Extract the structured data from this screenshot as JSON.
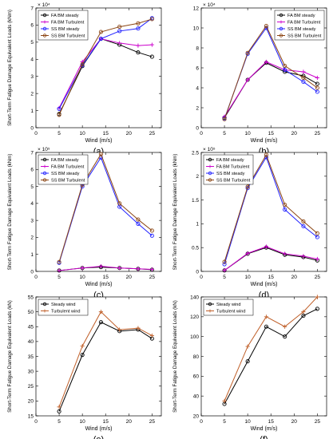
{
  "figure": {
    "title": ""
  },
  "chart_data": [
    {
      "type": "line",
      "panel_label": "(a)",
      "xlabel": "Wind (m/s)",
      "ylabel": "Short-Term Fatigue Damage Equivalent Loads (kNm)",
      "exponent": "× 10⁴",
      "xlim": [
        0,
        27
      ],
      "ylim": [
        0,
        7
      ],
      "xticks": [
        0,
        5,
        10,
        15,
        20,
        25
      ],
      "yticks": [
        0,
        1,
        2,
        3,
        4,
        5,
        6,
        7
      ],
      "x": [
        5,
        10,
        14,
        18,
        22,
        25
      ],
      "legend_position": "top-left",
      "series": [
        {
          "name": "FA BM steady",
          "values": [
            0.8,
            3.6,
            5.2,
            4.85,
            4.4,
            4.15
          ],
          "color": "#000000",
          "marker": "circle"
        },
        {
          "name": "FA BM Turbulent",
          "values": [
            1.15,
            3.85,
            5.2,
            4.95,
            4.8,
            4.85
          ],
          "color": "#cc00cc",
          "marker": "plus"
        },
        {
          "name": "SS BM steady",
          "values": [
            1.1,
            3.65,
            5.2,
            5.65,
            5.8,
            6.4
          ],
          "color": "#2020ff",
          "marker": "circle"
        },
        {
          "name": "SS BM Turbulent",
          "values": [
            0.75,
            3.7,
            5.6,
            5.9,
            6.1,
            6.35
          ],
          "color": "#8b4513",
          "marker": "circle"
        }
      ]
    },
    {
      "type": "line",
      "panel_label": "(b)",
      "xlabel": "Wind (m/s)",
      "ylabel": "",
      "exponent": "× 10⁴",
      "xlim": [
        0,
        27
      ],
      "ylim": [
        0,
        12
      ],
      "xticks": [
        0,
        5,
        10,
        15,
        20,
        25
      ],
      "yticks": [
        0,
        2,
        4,
        6,
        8,
        10,
        12
      ],
      "x": [
        5,
        10,
        14,
        18,
        22,
        25
      ],
      "legend_position": "top-right",
      "series": [
        {
          "name": "FA BM steady",
          "values": [
            1.0,
            4.8,
            6.5,
            5.6,
            5.2,
            4.4
          ],
          "color": "#000000",
          "marker": "circle"
        },
        {
          "name": "FA BM Turbulent",
          "values": [
            1.1,
            4.8,
            6.6,
            5.8,
            5.6,
            5.0
          ],
          "color": "#cc00cc",
          "marker": "plus"
        },
        {
          "name": "SS BM steady",
          "values": [
            0.9,
            7.4,
            10.0,
            5.8,
            4.6,
            3.6
          ],
          "color": "#2020ff",
          "marker": "circle"
        },
        {
          "name": "SS BM Turbulent",
          "values": [
            0.85,
            7.5,
            10.2,
            6.2,
            5.0,
            4.0
          ],
          "color": "#8b4513",
          "marker": "circle"
        }
      ]
    },
    {
      "type": "line",
      "panel_label": "(c)",
      "xlabel": "Wind (m/s)",
      "ylabel": "Short-Term Fatigue Damage Equivalent Loads (kNm)",
      "exponent": "× 10⁵",
      "xlim": [
        0,
        27
      ],
      "ylim": [
        0,
        7
      ],
      "xticks": [
        0,
        5,
        10,
        15,
        20,
        25
      ],
      "yticks": [
        0,
        1,
        2,
        3,
        4,
        5,
        6,
        7
      ],
      "x": [
        5,
        10,
        14,
        18,
        22,
        25
      ],
      "legend_position": "top-left",
      "series": [
        {
          "name": "FA BM steady",
          "values": [
            0.05,
            0.2,
            0.25,
            0.2,
            0.15,
            0.1
          ],
          "color": "#000000",
          "marker": "circle"
        },
        {
          "name": "FA BM Turbulent",
          "values": [
            0.05,
            0.2,
            0.3,
            0.2,
            0.15,
            0.12
          ],
          "color": "#cc00cc",
          "marker": "plus"
        },
        {
          "name": "SS BM steady",
          "values": [
            0.5,
            5.0,
            6.7,
            3.8,
            2.8,
            2.1
          ],
          "color": "#2020ff",
          "marker": "circle"
        },
        {
          "name": "SS BM Turbulent",
          "values": [
            0.55,
            5.1,
            6.9,
            4.0,
            3.05,
            2.4
          ],
          "color": "#8b4513",
          "marker": "circle"
        }
      ]
    },
    {
      "type": "line",
      "panel_label": "(d)",
      "xlabel": "Wind (m/s)",
      "ylabel": "Short-Term Fatigue Damage Equivalent Loads (kNm)",
      "exponent": "× 10⁵",
      "xlim": [
        0,
        27
      ],
      "ylim": [
        0,
        2.5
      ],
      "xticks": [
        0,
        5,
        10,
        15,
        20,
        25
      ],
      "yticks": [
        0,
        0.5,
        1,
        1.5,
        2,
        2.5
      ],
      "x": [
        5,
        10,
        14,
        18,
        22,
        25
      ],
      "legend_position": "top-left",
      "series": [
        {
          "name": "FA BM steady",
          "values": [
            0.02,
            0.37,
            0.5,
            0.35,
            0.3,
            0.23
          ],
          "color": "#000000",
          "marker": "circle"
        },
        {
          "name": "FA BM Turbulent",
          "values": [
            0.02,
            0.38,
            0.52,
            0.37,
            0.32,
            0.26
          ],
          "color": "#cc00cc",
          "marker": "plus"
        },
        {
          "name": "SS BM steady",
          "values": [
            0.15,
            1.75,
            2.4,
            1.3,
            0.95,
            0.72
          ],
          "color": "#2020ff",
          "marker": "circle"
        },
        {
          "name": "SS BM Turbulent",
          "values": [
            0.2,
            1.78,
            2.45,
            1.4,
            1.05,
            0.8
          ],
          "color": "#8b4513",
          "marker": "circle"
        }
      ]
    },
    {
      "type": "line",
      "panel_label": "(e)",
      "xlabel": "Wind (m/s)",
      "ylabel": "Short-Term Fatigue Damage Equivalent Loads (kN)",
      "exponent": "",
      "xlim": [
        0,
        27
      ],
      "ylim": [
        15,
        55
      ],
      "xticks": [
        0,
        5,
        10,
        15,
        20,
        25
      ],
      "yticks": [
        15,
        20,
        25,
        30,
        35,
        40,
        45,
        50,
        55
      ],
      "x": [
        5,
        10,
        14,
        18,
        22,
        25
      ],
      "legend_position": "top-left",
      "series": [
        {
          "name": "Steady wind",
          "values": [
            16.5,
            35.5,
            46.5,
            43.5,
            44.0,
            41.0
          ],
          "color": "#000000",
          "marker": "circle"
        },
        {
          "name": "Turbulent wind",
          "values": [
            18.0,
            38.5,
            50.0,
            44.0,
            44.5,
            42.0
          ],
          "color": "#c0602a",
          "marker": "plus"
        }
      ]
    },
    {
      "type": "line",
      "panel_label": "(f)",
      "xlabel": "Wind (m/s)",
      "ylabel": "Short-Term Fatigue Damage Equivalent Loads (kN)",
      "exponent": "",
      "xlim": [
        0,
        27
      ],
      "ylim": [
        20,
        140
      ],
      "xticks": [
        0,
        5,
        10,
        15,
        20,
        25
      ],
      "yticks": [
        20,
        40,
        60,
        80,
        100,
        120,
        140
      ],
      "x": [
        5,
        10,
        14,
        18,
        22,
        25
      ],
      "legend_position": "top-left",
      "series": [
        {
          "name": "Steady wind",
          "values": [
            32,
            75,
            110,
            100,
            121,
            128
          ],
          "color": "#000000",
          "marker": "circle"
        },
        {
          "name": "Turbulent wind",
          "values": [
            35,
            90,
            120,
            110,
            125,
            140
          ],
          "color": "#c0602a",
          "marker": "plus"
        }
      ]
    }
  ]
}
